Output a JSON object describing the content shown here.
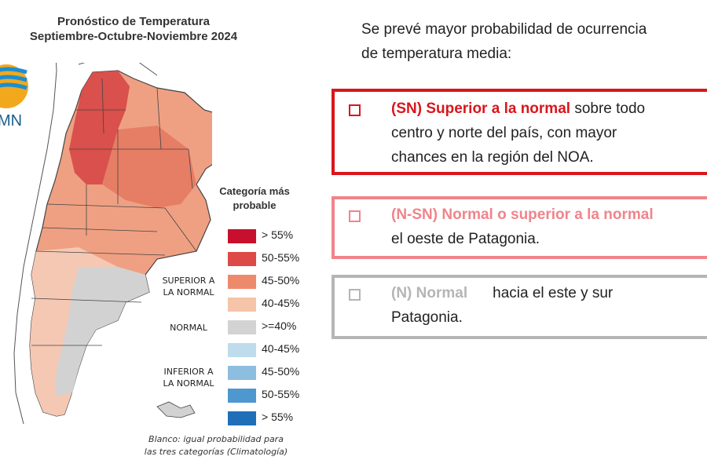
{
  "map": {
    "title_line1": "Pronóstico de Temperatura",
    "title_line2": "Septiembre-Octubre-Noviembre 2024",
    "logo_text": "MN"
  },
  "legend": {
    "title_line1": "Categoría más",
    "title_line2": "probable",
    "groups": [
      {
        "line1": "SUPERIOR A",
        "line2": "LA NORMAL"
      },
      {
        "line1": "NORMAL",
        "line2": ""
      },
      {
        "line1": "INFERIOR A",
        "line2": "LA NORMAL"
      }
    ],
    "items": [
      {
        "label": "> 55%",
        "color": "#c8102e"
      },
      {
        "label": "50-55%",
        "color": "#dd4a48"
      },
      {
        "label": "45-50%",
        "color": "#ee8a6c"
      },
      {
        "label": "40-45%",
        "color": "#f6c4a8"
      },
      {
        "label": ">=40%",
        "color": "#d3d3d3"
      },
      {
        "label": "40-45%",
        "color": "#bfdcec"
      },
      {
        "label": "45-50%",
        "color": "#8dbedf"
      },
      {
        "label": "50-55%",
        "color": "#4f97cf"
      },
      {
        "label": "> 55%",
        "color": "#1f6fb8"
      }
    ],
    "note_line1": "Blanco: igual probabilidad para",
    "note_line2": "las tres categorías (Climatología)"
  },
  "forecast": {
    "intro_line1": "Se prevé mayor probabilidad de ocurrencia",
    "intro_line2": "de temperatura media:",
    "items": [
      {
        "label": "(SN) Superior a la normal",
        "text_line1": " sobre todo",
        "text_line2": "centro y norte del país, con mayor",
        "text_line3": "chances en la región del NOA.",
        "color": "#d9161c"
      },
      {
        "label": "(N-SN) Normal o superior a la normal",
        "text_line2": "el oeste de Patagonia.",
        "color": "#f0848b"
      },
      {
        "label": "(N) Normal",
        "text_line1": "hacia el este y sur",
        "text_line2": "Patagonia.",
        "color": "#b5b5b5"
      }
    ]
  }
}
